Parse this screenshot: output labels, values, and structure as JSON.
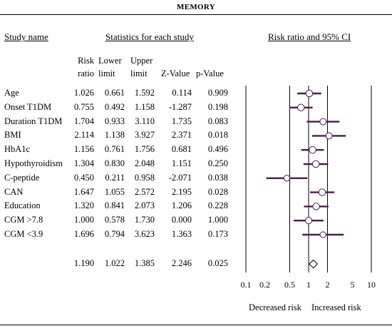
{
  "page_title": "MEMORY",
  "headers": {
    "study_name": "Study name",
    "stats": "Statistics for each study",
    "plot": "Risk ratio and 95% CI"
  },
  "columns": {
    "rr": [
      "Risk",
      "ratio"
    ],
    "lower": [
      "Lower",
      "limit"
    ],
    "upper": [
      "Upper",
      "limit"
    ],
    "z": "Z-Value",
    "p": "p-Value"
  },
  "axis": {
    "ticks": [
      "0.1",
      "0.2",
      "0.5",
      "1",
      "2",
      "5",
      "10"
    ],
    "left_label": "Decreased risk",
    "right_label": "Increased risk"
  },
  "chart_data": {
    "type": "forest",
    "scale": "log",
    "xlim": [
      0.1,
      10
    ],
    "reference_line": 1,
    "rows": [
      {
        "study": "Age",
        "rr": "1.026",
        "lower": "0.661",
        "upper": "1.592",
        "z": "0.114",
        "p": "0.909"
      },
      {
        "study": "Onset T1DM",
        "rr": "0.755",
        "lower": "0.492",
        "upper": "1.158",
        "z": "-1.287",
        "p": "0.198"
      },
      {
        "study": "Duration T1DM",
        "rr": "1.704",
        "lower": "0.933",
        "upper": "3.110",
        "z": "1.735",
        "p": "0.083"
      },
      {
        "study": "BMI",
        "rr": "2.114",
        "lower": "1.138",
        "upper": "3.927",
        "z": "2.371",
        "p": "0.018"
      },
      {
        "study": "HbA1c",
        "rr": "1.156",
        "lower": "0.761",
        "upper": "1.756",
        "z": "0.681",
        "p": "0.496"
      },
      {
        "study": "Hypothyroidism",
        "rr": "1.304",
        "lower": "0.830",
        "upper": "2.048",
        "z": "1.151",
        "p": "0.250"
      },
      {
        "study": "C-peptide",
        "rr": "0.450",
        "lower": "0.211",
        "upper": "0.958",
        "z": "-2.071",
        "p": "0.038"
      },
      {
        "study": "CAN",
        "rr": "1.647",
        "lower": "1.055",
        "upper": "2.572",
        "z": "2.195",
        "p": "0.028"
      },
      {
        "study": "Education",
        "rr": "1.320",
        "lower": "0.841",
        "upper": "2.073",
        "z": "1.206",
        "p": "0.228"
      },
      {
        "study": "CGM >7.8",
        "rr": "1.000",
        "lower": "0.578",
        "upper": "1.730",
        "z": "0.000",
        "p": "1.000"
      },
      {
        "study": "CGM <3.9",
        "rr": "1.696",
        "lower": "0.794",
        "upper": "3.623",
        "z": "1.363",
        "p": "0.173"
      }
    ],
    "summary": {
      "study": "",
      "rr": "1.190",
      "lower": "1.022",
      "upper": "1.385",
      "z": "2.246",
      "p": "0.025"
    },
    "colors": {
      "ci_line": "#4b1d4d",
      "marker_fill": "#ffffff",
      "marker_stroke": "#4b1d4d"
    }
  }
}
